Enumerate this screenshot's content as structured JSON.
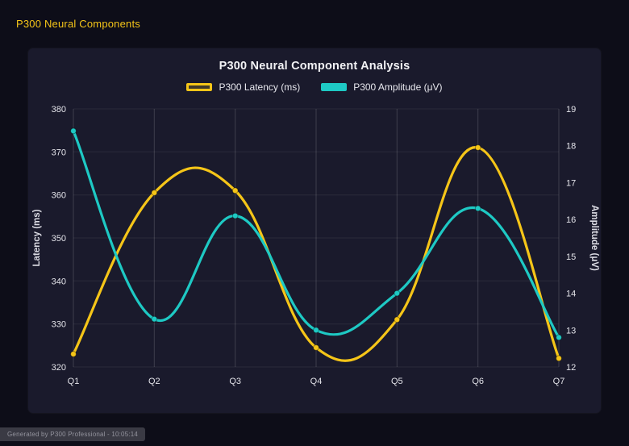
{
  "page": {
    "title": "P300 Neural Components",
    "footer": "Generated by P300 Professional - 10:05:14"
  },
  "chart_data": {
    "type": "line",
    "title": "P300 Neural Component Analysis",
    "categories": [
      "Q1",
      "Q2",
      "Q3",
      "Q4",
      "Q5",
      "Q6",
      "Q7"
    ],
    "series": [
      {
        "name": "P300 Latency (ms)",
        "axis": "left",
        "color": "#f5c518",
        "values": [
          323,
          360.5,
          361,
          324.5,
          331,
          371,
          322
        ]
      },
      {
        "name": "P300 Amplitude (μV)",
        "axis": "right",
        "color": "#1ec9c4",
        "values": [
          18.4,
          13.3,
          16.1,
          13.0,
          14.0,
          16.3,
          12.8
        ]
      }
    ],
    "axes": {
      "left": {
        "label": "Latency (ms)",
        "min": 320,
        "max": 380,
        "ticks": [
          320,
          330,
          340,
          350,
          360,
          370,
          380
        ]
      },
      "right": {
        "label": "Amplitude (μV)",
        "min": 12,
        "max": 19,
        "ticks": [
          12,
          13,
          14,
          15,
          16,
          17,
          18,
          19
        ]
      }
    },
    "grid": true,
    "legend_position": "top",
    "curve": "smooth"
  }
}
